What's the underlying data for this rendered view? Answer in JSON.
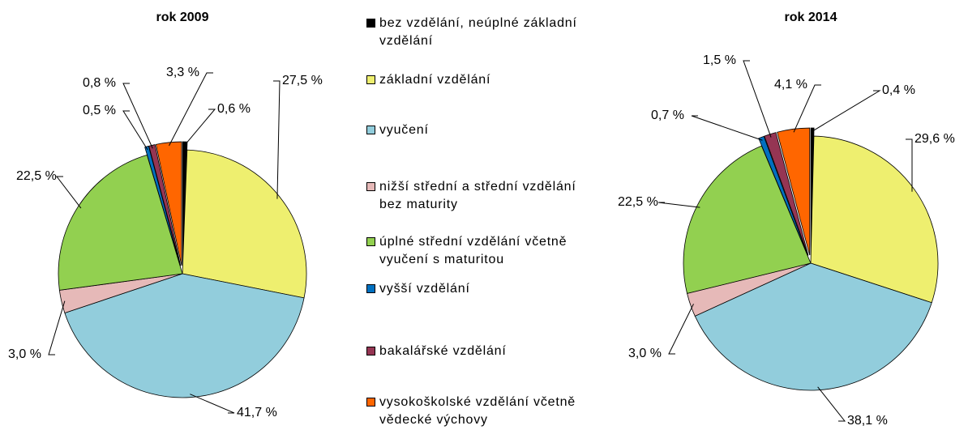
{
  "chart_data": [
    {
      "type": "pie",
      "title": "rok 2009",
      "categories": [
        "bez vzdělání, neúplné základní vzdělání",
        "základní vzdělání",
        "vyučení",
        "nižší střední a střední vzdělání bez maturity",
        "úplné střední vzdělání včetně vyučení s maturitou",
        "vyšší vzdělání",
        "bakalářské vzdělání",
        "vysokoškolské vzdělání včetně vědecké výchovy"
      ],
      "colors": [
        "#000000",
        "#eeef6f",
        "#92cddc",
        "#e6b9b8",
        "#92d050",
        "#0070c0",
        "#953553",
        "#ff6600"
      ],
      "values": [
        0.6,
        27.5,
        41.7,
        3.0,
        22.5,
        0.5,
        0.8,
        3.3
      ],
      "value_labels": [
        "0,6 %",
        "27,5 %",
        "41,7 %",
        "3,0 %",
        "22,5 %",
        "0,5 %",
        "0,8 %",
        "3,3 %"
      ]
    },
    {
      "type": "pie",
      "title": "rok 2014",
      "categories": [
        "bez vzdělání, neúplné základní vzdělání",
        "základní vzdělání",
        "vyučení",
        "nižší střední a střední vzdělání bez maturity",
        "úplné střední vzdělání včetně vyučení s maturitou",
        "vyšší vzdělání",
        "bakalářské vzdělání",
        "vysokoškolské vzdělání včetně vědecké výchovy"
      ],
      "colors": [
        "#000000",
        "#eeef6f",
        "#92cddc",
        "#e6b9b8",
        "#92d050",
        "#0070c0",
        "#953553",
        "#ff6600"
      ],
      "values": [
        0.4,
        29.6,
        38.1,
        3.0,
        22.5,
        0.7,
        1.5,
        4.1
      ],
      "value_labels": [
        "0,4 %",
        "29,6 %",
        "38,1 %",
        "3,0 %",
        "22,5 %",
        "0,7 %",
        "1,5 %",
        "4,1 %"
      ]
    }
  ]
}
